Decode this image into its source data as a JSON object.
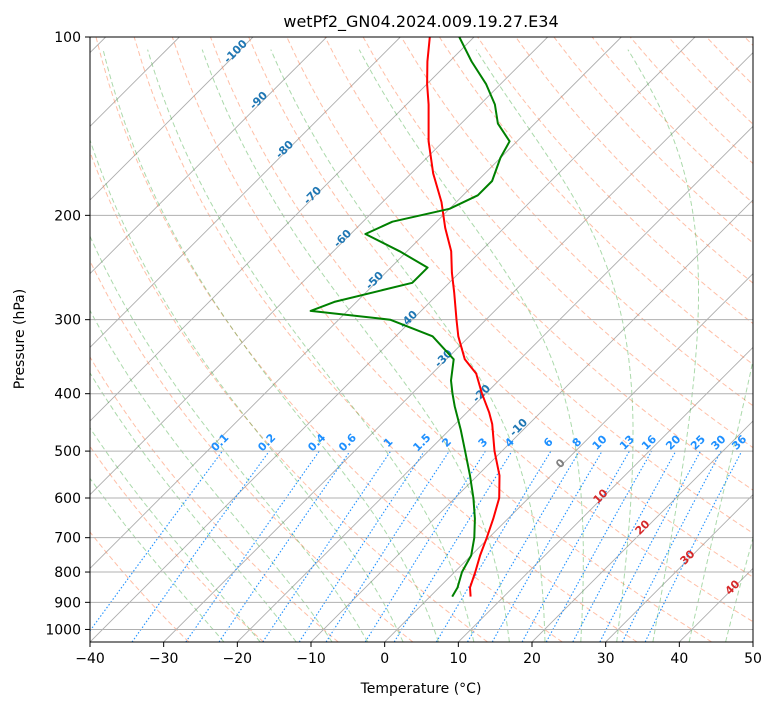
{
  "chart_data": {
    "type": "line",
    "title": "wetPf2_GN04.2024.009.19.27.E34",
    "xlabel": "Temperature (°C)",
    "ylabel": "Pressure (hPa)",
    "xlim": [
      -40,
      50
    ],
    "ylim": [
      1050,
      100
    ],
    "y_scale": "log",
    "skew": "skew-T",
    "grid": true,
    "x_ticks": [
      -40,
      -30,
      -20,
      -10,
      0,
      10,
      20,
      30,
      40,
      50
    ],
    "y_ticks": [
      1000,
      900,
      800,
      700,
      600,
      500,
      400,
      300,
      200,
      100
    ],
    "series": [
      {
        "name": "",
        "color": "#ff0000",
        "points": [
          {
            "p": 880,
            "t": 5.5
          },
          {
            "p": 850,
            "t": 4.2
          },
          {
            "p": 800,
            "t": 2.8
          },
          {
            "p": 750,
            "t": 1.2
          },
          {
            "p": 700,
            "t": -0.3
          },
          {
            "p": 650,
            "t": -2
          },
          {
            "p": 600,
            "t": -4
          },
          {
            "p": 550,
            "t": -7
          },
          {
            "p": 500,
            "t": -11
          },
          {
            "p": 450,
            "t": -15
          },
          {
            "p": 430,
            "t": -17
          },
          {
            "p": 400,
            "t": -20.5
          },
          {
            "p": 370,
            "t": -24
          },
          {
            "p": 350,
            "t": -27.5
          },
          {
            "p": 320,
            "t": -31.5
          },
          {
            "p": 300,
            "t": -34
          },
          {
            "p": 270,
            "t": -38
          },
          {
            "p": 250,
            "t": -41
          },
          {
            "p": 230,
            "t": -44
          },
          {
            "p": 210,
            "t": -48
          },
          {
            "p": 190,
            "t": -52
          },
          {
            "p": 170,
            "t": -57
          },
          {
            "p": 150,
            "t": -62
          },
          {
            "p": 130,
            "t": -67
          },
          {
            "p": 120,
            "t": -70
          },
          {
            "p": 110,
            "t": -73
          },
          {
            "p": 100,
            "t": -76
          }
        ]
      },
      {
        "name": "",
        "color": "#008000",
        "points": [
          {
            "p": 880,
            "t": 3
          },
          {
            "p": 850,
            "t": 2.5
          },
          {
            "p": 800,
            "t": 1
          },
          {
            "p": 750,
            "t": 0
          },
          {
            "p": 700,
            "t": -2
          },
          {
            "p": 650,
            "t": -4.5
          },
          {
            "p": 600,
            "t": -7.5
          },
          {
            "p": 550,
            "t": -11
          },
          {
            "p": 500,
            "t": -15
          },
          {
            "p": 460,
            "t": -18.5
          },
          {
            "p": 420,
            "t": -22.5
          },
          {
            "p": 400,
            "t": -24.5
          },
          {
            "p": 380,
            "t": -26.5
          },
          {
            "p": 350,
            "t": -29
          },
          {
            "p": 320,
            "t": -35
          },
          {
            "p": 300,
            "t": -43
          },
          {
            "p": 290,
            "t": -55
          },
          {
            "p": 280,
            "t": -53
          },
          {
            "p": 260,
            "t": -45
          },
          {
            "p": 245,
            "t": -45
          },
          {
            "p": 230,
            "t": -51
          },
          {
            "p": 215,
            "t": -58
          },
          {
            "p": 205,
            "t": -56
          },
          {
            "p": 195,
            "t": -50
          },
          {
            "p": 185,
            "t": -48
          },
          {
            "p": 175,
            "t": -48
          },
          {
            "p": 160,
            "t": -50
          },
          {
            "p": 150,
            "t": -51
          },
          {
            "p": 140,
            "t": -55
          },
          {
            "p": 130,
            "t": -58
          },
          {
            "p": 120,
            "t": -62
          },
          {
            "p": 110,
            "t": -67
          },
          {
            "p": 100,
            "t": -72
          }
        ]
      }
    ],
    "dry_adiabat_labels": [
      "-100",
      "-90",
      "-80",
      "-70",
      "-60",
      "-50",
      "-40",
      "-30",
      "-20",
      "-10"
    ],
    "moist_adiabat_labels": [
      "0",
      "10",
      "20",
      "30",
      "40"
    ],
    "mixing_ratio_labels": [
      "0.1",
      "0.2",
      "0.4",
      "0.6",
      "1",
      "1.5",
      "2",
      "3",
      "4",
      "6",
      "8",
      "10",
      "13",
      "16",
      "20",
      "25",
      "30",
      "36"
    ],
    "colors": {
      "temperature": "#ff0000",
      "dewpoint": "#008000",
      "isotherm": "#999999",
      "dry_adiabat": "#ff7f50",
      "moist_adiabat": "#2ca02c",
      "mixing_ratio": "#1e90ff",
      "dry_label": "#1f77b4",
      "moist_label": "#d62728"
    }
  }
}
